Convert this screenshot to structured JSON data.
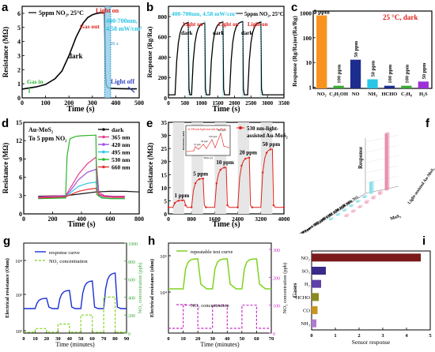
{
  "panels": [
    {
      "letter": "a",
      "chart_data": {
        "type": "line",
        "xlabel": "Time (s)",
        "ylabel": "Resistance (MΩ)",
        "xlim": [
          0,
          500
        ],
        "ylim": [
          0,
          6.5
        ],
        "xticks": [
          0,
          100,
          200,
          300,
          400,
          500
        ],
        "yticks": [
          0,
          1,
          2,
          3,
          4,
          5,
          6
        ],
        "legend": "5ppm NO₂, 25°C",
        "annotations": [
          "Light on",
          "Gas out",
          "400-700nm,",
          "4.58 mW/cm²",
          "dark",
          "Gas in",
          "Light off",
          "26 s"
        ],
        "series": [
          {
            "name": "5ppm NO₂, 25°C",
            "x": [
              0,
              20,
              60,
              100,
              140,
              170,
              200,
              230,
              260,
              280,
              300,
              320,
              340,
              352,
              356,
              360,
              364,
              368,
              372,
              380,
              400,
              430,
              460,
              490
            ],
            "y": [
              0.62,
              0.68,
              0.78,
              0.95,
              1.35,
              1.9,
              3.0,
              4.3,
              5.3,
              5.7,
              5.9,
              6.0,
              6.05,
              6.05,
              1.5,
              0.9,
              0.75,
              0.72,
              0.7,
              0.68,
              0.66,
              0.65,
              0.64,
              0.64
            ]
          }
        ]
      }
    },
    {
      "letter": "b",
      "chart_data": {
        "type": "line",
        "xlabel": "Time (s)",
        "ylabel": "Response (Rg/Ra)",
        "xlim": [
          0,
          3500
        ],
        "ylim": [
          0,
          900
        ],
        "xticks": [
          0,
          500,
          1000,
          1500,
          2000,
          2500,
          3000,
          3500
        ],
        "yticks": [
          0,
          200,
          400,
          600,
          800
        ],
        "legend": "5ppm NO₂, 25°C",
        "annotations": [
          "400-700nm, 4.58 mW/cm²",
          "Light on",
          "dark"
        ],
        "cycles": [
          {
            "gas_in": 200,
            "gas_out": 600,
            "peak": 740
          },
          {
            "gas_in": 700,
            "gas_out": 1100,
            "peak": 735
          },
          {
            "gas_in": 1250,
            "gas_out": 1650,
            "peak": 745
          },
          {
            "gas_in": 1850,
            "gas_out": 2250,
            "peak": 750
          },
          {
            "gas_in": 2400,
            "gas_out": 2800,
            "peak": 745
          }
        ],
        "baseline": 30
      }
    },
    {
      "letter": "c",
      "chart_data": {
        "type": "bar",
        "ylabel": "Response (Rg/Ra)or(Ra/Rg)",
        "yscale": "log",
        "ylim": [
          0.9,
          1200
        ],
        "yticks": [
          1,
          10,
          100,
          1000
        ],
        "ytick_labels": [
          "1",
          "10",
          "100",
          "1000"
        ],
        "title_note": "25 °C, dark",
        "categories": [
          "NO₂",
          "C₂H₅OH",
          "NO",
          "NH₃",
          "HCHO",
          "C₇H₈",
          "H₂S"
        ],
        "values": [
          800,
          1.15,
          13,
          2.1,
          1.15,
          1.15,
          1.7
        ],
        "bar_labels": [
          "5 ppm",
          "100 ppm",
          "50 ppm",
          "50 ppm",
          "100 ppm",
          "100 ppm",
          "50 ppm"
        ],
        "colors": [
          "#f7931e",
          "#39a935",
          "#1d2c8f",
          "#29c5e6",
          "#1d2c8f",
          "#39a935",
          "#9b30d9"
        ]
      }
    },
    {
      "letter": "d",
      "chart_data": {
        "type": "line",
        "xlabel": "Time (s)",
        "ylabel": "Resistance (MΩ)",
        "xlim": [
          0,
          800
        ],
        "ylim": [
          0,
          15
        ],
        "xticks": [
          0,
          200,
          400,
          600,
          800
        ],
        "yticks": [
          0,
          3,
          6,
          9,
          12,
          15
        ],
        "annotations": [
          "Au-MoS₂",
          "To 5 ppm NO₂"
        ],
        "series": [
          {
            "name": "dark",
            "color": "#111111",
            "x": [
              100,
              300,
              400,
              500,
              600,
              700,
              800
            ],
            "y": [
              2.9,
              3.0,
              3.3,
              3.6,
              3.7,
              3.7,
              3.6
            ]
          },
          {
            "name": "365 nm",
            "color": "#e43d8b",
            "x": [
              100,
              290,
              330,
              380,
              440,
              500,
              520,
              560,
              620,
              700
            ],
            "y": [
              2.8,
              3.0,
              4.5,
              6.5,
              8.2,
              9.3,
              3.5,
              3.0,
              2.9,
              2.9
            ]
          },
          {
            "name": "420 nm",
            "color": "#a04fe0",
            "x": [
              100,
              290,
              330,
              380,
              440,
              500,
              520,
              560,
              620,
              700
            ],
            "y": [
              2.7,
              2.9,
              4.0,
              5.6,
              6.8,
              7.3,
              3.2,
              2.9,
              2.8,
              2.8
            ]
          },
          {
            "name": "495 nm",
            "color": "#29c5e6",
            "x": [
              100,
              290,
              330,
              380,
              440,
              500,
              520,
              560,
              620,
              700
            ],
            "y": [
              2.5,
              2.7,
              3.6,
              4.5,
              5.0,
              5.2,
              2.9,
              2.6,
              2.5,
              2.5
            ]
          },
          {
            "name": "530 nm",
            "color": "#2ab52a",
            "x": [
              100,
              290,
              300,
              320,
              360,
              400,
              500,
              505,
              540,
              600,
              700
            ],
            "y": [
              2.5,
              2.6,
              9.5,
              12.3,
              12.7,
              12.8,
              12.9,
              3.2,
              2.6,
              2.5,
              2.5
            ]
          },
          {
            "name": "660 nm",
            "color": "#e33030",
            "x": [
              100,
              290,
              330,
              380,
              440,
              500,
              520,
              560,
              620,
              700
            ],
            "y": [
              2.6,
              2.8,
              3.2,
              3.7,
              4.0,
              4.2,
              3.1,
              2.8,
              2.7,
              2.7
            ]
          }
        ]
      }
    },
    {
      "letter": "e",
      "chart_data": {
        "type": "line",
        "xlabel": "Time (s)",
        "ylabel": "Resistance (MΩ)",
        "xlim": [
          0,
          4000
        ],
        "ylim": [
          0,
          35
        ],
        "xticks": [
          0,
          800,
          1600,
          2400,
          3200,
          4000
        ],
        "yticks": [
          0,
          5,
          10,
          15,
          20,
          25,
          30,
          35
        ],
        "legend": "530 nm-light-assisted Au-MoS₂",
        "annotations": [
          "1 ppm",
          "5 ppm",
          "10 ppm",
          "20 ppm",
          "50 ppm"
        ],
        "steps": [
          {
            "label": "1 ppm",
            "start": 150,
            "end": 550,
            "level": 5.2
          },
          {
            "label": "5 ppm",
            "start": 800,
            "end": 1200,
            "level": 13.5
          },
          {
            "label": "10 ppm",
            "start": 1600,
            "end": 2000,
            "level": 17.8
          },
          {
            "label": "20 ppm",
            "start": 2400,
            "end": 2800,
            "level": 21.5
          },
          {
            "label": "50 ppm",
            "start": 3200,
            "end": 3600,
            "level": 24.8
          }
        ],
        "baseline": 2.5,
        "inset": {
          "title": "530 nm-light-assisted Au-MoS₂",
          "xlabel": "Time (s)",
          "ylabel": "Resistance (kΩ)",
          "labels": [
            "10 ppb",
            "50 ppb",
            "100 ppb",
            "500 ppb"
          ]
        }
      }
    },
    {
      "letter": "f",
      "chart_data": {
        "type": "bar",
        "zlabel": "Response",
        "groups": [
          "MoS₂",
          "Light-assisted Au-MoS₂"
        ],
        "categories": [
          "50 ppm NO₂",
          "50 ppm NH₃",
          "50 ppm H₂S",
          "50 ppm SO₂",
          "100 ppm CH₄",
          "100 ppm C₂H₅OH",
          "100 ppm C₇H₈"
        ],
        "values_light_au": [
          90,
          5,
          4,
          4,
          3,
          3,
          3
        ],
        "values_mos2": [
          18,
          3,
          2,
          2,
          2,
          2,
          2
        ]
      }
    },
    {
      "letter": "g",
      "chart_data": {
        "type": "line",
        "xlabel": "Time (minutes)",
        "ylabel": "Electrical resistance (Ohm)",
        "ylabel2": "NO₂ concentration (ppb)",
        "xlim": [
          0,
          90
        ],
        "xticks": [
          0,
          10,
          20,
          30,
          40,
          50,
          60,
          70,
          80,
          90
        ],
        "yticks_log_labels": [
          "10²",
          "10³",
          "10⁴"
        ],
        "y2ticks": [
          0,
          200,
          400,
          600,
          800,
          1000
        ],
        "legend": [
          "response curve",
          "NO₂ concentration"
        ],
        "pulses": [
          {
            "start": 10,
            "end": 20,
            "conc": 50
          },
          {
            "start": 30,
            "end": 40,
            "conc": 100
          },
          {
            "start": 50,
            "end": 60,
            "conc": 200
          },
          {
            "start": 70,
            "end": 80,
            "conc": 400
          }
        ]
      }
    },
    {
      "letter": "h",
      "chart_data": {
        "type": "line",
        "xlabel": "Time (minutes)",
        "ylabel": "Electrical resistance (ohm)",
        "ylabel2": "NO₂ concentration (ppb)",
        "xlim": [
          0,
          70
        ],
        "xticks": [
          0,
          10,
          20,
          30,
          40,
          50,
          60,
          70
        ],
        "yticks_log_labels": [
          "10⁴",
          "10⁵"
        ],
        "y2ticks": [
          0,
          100,
          200,
          300
        ],
        "legend": [
          "repeatable test curve",
          "NO₂ concentration"
        ],
        "pulses": [
          {
            "start": 10,
            "end": 20,
            "conc": 100
          },
          {
            "start": 30,
            "end": 40,
            "conc": 100
          },
          {
            "start": 50,
            "end": 60,
            "conc": 100
          }
        ]
      }
    },
    {
      "letter": "i",
      "chart_data": {
        "type": "bar",
        "orientation": "horizontal",
        "xlabel": "Sensor response",
        "ylabel": "Gases",
        "xlim": [
          0,
          5
        ],
        "xticks": [
          0,
          1,
          2,
          3,
          4,
          5
        ],
        "categories": [
          "NO₂",
          "SO₂",
          "H₂",
          "HCHO",
          "CO",
          "NH₃"
        ],
        "values": [
          4.6,
          0.6,
          0.4,
          0.3,
          0.25,
          0.2
        ],
        "colors": [
          "#7a1a1a",
          "#3b2a8a",
          "#5d3fa8",
          "#8a8a1e",
          "#c8961e",
          "#b07ad0"
        ]
      }
    }
  ]
}
